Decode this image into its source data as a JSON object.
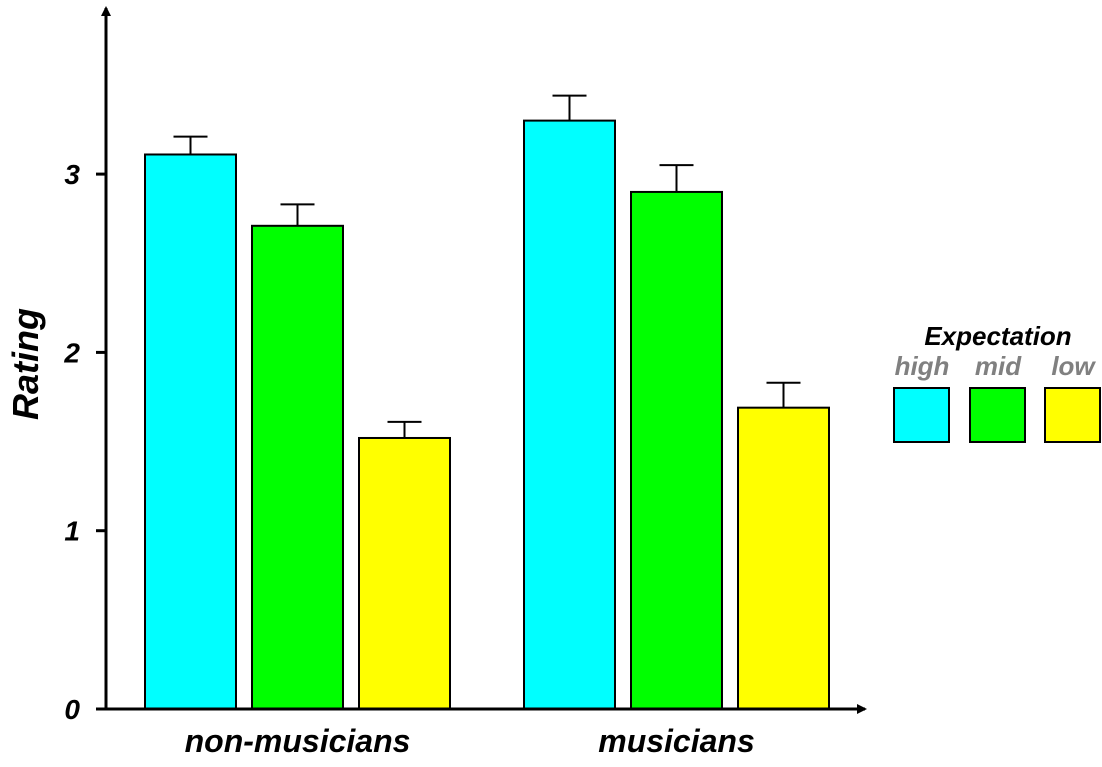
{
  "chart_data": {
    "type": "bar",
    "categories": [
      "non-musicians",
      "musicians"
    ],
    "series": [
      {
        "name": "high",
        "color": "#00ffff",
        "values": [
          3.11,
          3.3
        ],
        "errors": [
          0.1,
          0.14
        ]
      },
      {
        "name": "mid",
        "color": "#00ff00",
        "values": [
          2.71,
          2.9
        ],
        "errors": [
          0.12,
          0.15
        ]
      },
      {
        "name": "low",
        "color": "#ffff00",
        "values": [
          1.52,
          1.69
        ],
        "errors": [
          0.09,
          0.14
        ]
      }
    ],
    "ylabel": "Rating",
    "xlabel": "",
    "ylim": [
      0,
      3.8
    ],
    "yticks": [
      "0",
      "1",
      "2",
      "3"
    ],
    "legend": {
      "title": "Expectation",
      "placement": "right"
    },
    "grid": false,
    "error_bars": "upper"
  }
}
